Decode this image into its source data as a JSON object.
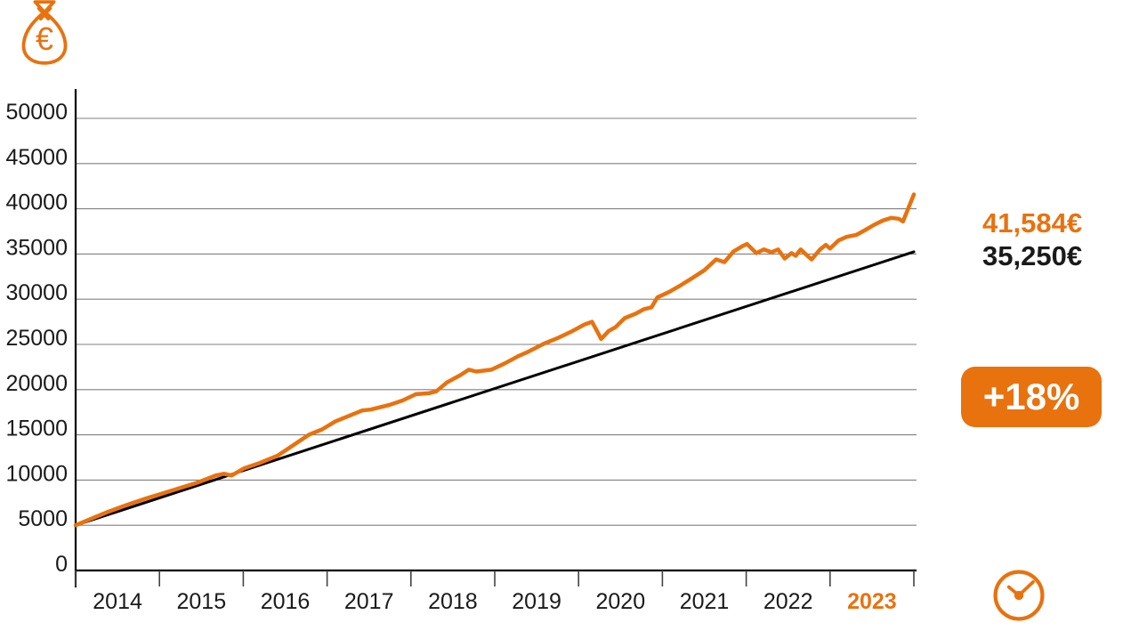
{
  "page": {
    "background": "#ffffff"
  },
  "colors": {
    "accent_orange": "#E8720E",
    "line_black": "#000000",
    "grid_gray": "#808080",
    "tick_gray": "#444444",
    "text_dark": "#1A1A1A"
  },
  "icons": {
    "top_left": "money-bag-euro",
    "bottom_right": "clock"
  },
  "values": {
    "portfolio_end": "41,584€",
    "contributions_end": "35,250€",
    "gain": "+18%"
  },
  "chart_data": {
    "type": "line",
    "title": "",
    "xlabel": "",
    "ylabel": "",
    "x_range": [
      2014,
      2024
    ],
    "ylim": [
      0,
      50000
    ],
    "grid": true,
    "y_axis": {
      "step": 5000,
      "tick_labels": [
        "0",
        "5000",
        "10000",
        "15000",
        "20000",
        "25000",
        "30000",
        "35000",
        "40000",
        "45000",
        "50000"
      ]
    },
    "x_axis": {
      "boundary_ticks": [
        2014,
        2015,
        2016,
        2017,
        2018,
        2019,
        2020,
        2021,
        2022,
        2023,
        2024
      ],
      "labels": [
        "2014",
        "2015",
        "2016",
        "2017",
        "2018",
        "2019",
        "2020",
        "2021",
        "2022",
        "2023"
      ],
      "highlighted_label": "2023"
    },
    "series": [
      {
        "name": "investment-value",
        "color": "#E8720E",
        "stroke_width": 4.5,
        "end_label": "41,584€",
        "points": [
          [
            2014.0,
            5000
          ],
          [
            2014.18,
            5700
          ],
          [
            2014.39,
            6500
          ],
          [
            2014.6,
            7200
          ],
          [
            2014.82,
            7900
          ],
          [
            2015.03,
            8500
          ],
          [
            2015.24,
            9100
          ],
          [
            2015.45,
            9700
          ],
          [
            2015.67,
            10500
          ],
          [
            2015.77,
            10700
          ],
          [
            2015.86,
            10500
          ],
          [
            2016.01,
            11300
          ],
          [
            2016.2,
            11900
          ],
          [
            2016.41,
            12700
          ],
          [
            2016.62,
            14000
          ],
          [
            2016.78,
            15000
          ],
          [
            2016.94,
            15600
          ],
          [
            2017.1,
            16500
          ],
          [
            2017.26,
            17100
          ],
          [
            2017.42,
            17700
          ],
          [
            2017.52,
            17800
          ],
          [
            2017.74,
            18300
          ],
          [
            2017.9,
            18800
          ],
          [
            2018.06,
            19500
          ],
          [
            2018.21,
            19600
          ],
          [
            2018.3,
            19800
          ],
          [
            2018.43,
            20800
          ],
          [
            2018.59,
            21600
          ],
          [
            2018.69,
            22200
          ],
          [
            2018.78,
            22000
          ],
          [
            2018.96,
            22200
          ],
          [
            2019.12,
            22900
          ],
          [
            2019.28,
            23700
          ],
          [
            2019.38,
            24100
          ],
          [
            2019.59,
            25100
          ],
          [
            2019.75,
            25700
          ],
          [
            2019.91,
            26400
          ],
          [
            2020.07,
            27200
          ],
          [
            2020.16,
            27500
          ],
          [
            2020.23,
            26300
          ],
          [
            2020.27,
            25600
          ],
          [
            2020.36,
            26500
          ],
          [
            2020.44,
            26900
          ],
          [
            2020.55,
            27900
          ],
          [
            2020.68,
            28400
          ],
          [
            2020.78,
            28900
          ],
          [
            2020.87,
            29100
          ],
          [
            2020.94,
            30200
          ],
          [
            2021.08,
            30800
          ],
          [
            2021.21,
            31500
          ],
          [
            2021.35,
            32300
          ],
          [
            2021.5,
            33200
          ],
          [
            2021.64,
            34400
          ],
          [
            2021.74,
            34100
          ],
          [
            2021.85,
            35300
          ],
          [
            2021.96,
            35900
          ],
          [
            2022.01,
            36100
          ],
          [
            2022.12,
            35100
          ],
          [
            2022.21,
            35500
          ],
          [
            2022.3,
            35200
          ],
          [
            2022.38,
            35500
          ],
          [
            2022.46,
            34500
          ],
          [
            2022.54,
            35100
          ],
          [
            2022.59,
            34800
          ],
          [
            2022.65,
            35500
          ],
          [
            2022.73,
            34800
          ],
          [
            2022.78,
            34400
          ],
          [
            2022.88,
            35500
          ],
          [
            2022.95,
            36000
          ],
          [
            2023.0,
            35600
          ],
          [
            2023.1,
            36500
          ],
          [
            2023.2,
            36900
          ],
          [
            2023.31,
            37100
          ],
          [
            2023.41,
            37600
          ],
          [
            2023.52,
            38200
          ],
          [
            2023.63,
            38700
          ],
          [
            2023.73,
            39000
          ],
          [
            2023.82,
            38900
          ],
          [
            2023.87,
            38600
          ],
          [
            2023.94,
            40200
          ],
          [
            2024.0,
            41584
          ]
        ]
      },
      {
        "name": "cumulative-contributions",
        "color": "#000000",
        "stroke_width": 3,
        "end_label": "35,250€",
        "points": [
          [
            2014.0,
            5000
          ],
          [
            2024.0,
            35250
          ]
        ]
      }
    ],
    "legend": "none",
    "annotations": {
      "gain_badge": "+18%"
    }
  }
}
